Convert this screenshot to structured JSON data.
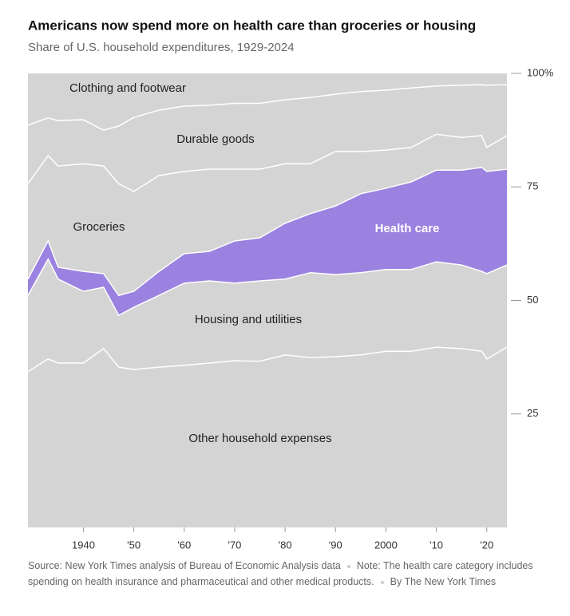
{
  "chart_data": {
    "type": "stacked_area",
    "title": "Americans now spend more on health care than groceries or housing",
    "subtitle": "Share of U.S. household expenditures, 1929-2024",
    "source": "Source: New York Times analysis of Bureau of Economic Analysis data",
    "note": "Note: The health care category includes spending on health insurance and pharmaceutical and other medical products.",
    "credit": "By The New York Times",
    "x": [
      1929,
      1933,
      1935,
      1940,
      1944,
      1947,
      1950,
      1955,
      1960,
      1965,
      1970,
      1975,
      1980,
      1985,
      1990,
      1995,
      2000,
      2005,
      2010,
      2015,
      2019,
      2020,
      2024
    ],
    "xlim": [
      1929,
      2024
    ],
    "xticks": [
      1940,
      {
        "value": 1950,
        "label": "'50"
      },
      {
        "value": 1960,
        "label": "'60"
      },
      {
        "value": 1970,
        "label": "'70"
      },
      {
        "value": 1980,
        "label": "'80"
      },
      {
        "value": 1990,
        "label": "'90"
      },
      2000,
      {
        "value": 2010,
        "label": "'10"
      },
      {
        "value": 2020,
        "label": "'20"
      }
    ],
    "ylim": [
      0,
      100
    ],
    "yticks": [
      25,
      50,
      75,
      {
        "value": 100,
        "label": "100%"
      }
    ],
    "series": [
      {
        "name": "Other household expenses",
        "color": "#d4d4d4",
        "values": [
          34.3,
          37.1,
          36.2,
          36.2,
          39.4,
          35.3,
          34.8,
          35.3,
          35.7,
          36.2,
          36.7,
          36.6,
          38.0,
          37.4,
          37.6,
          38.0,
          38.8,
          38.8,
          39.7,
          39.4,
          38.8,
          37.1,
          39.7
        ]
      },
      {
        "name": "Housing and utilities",
        "color": "#d4d4d4",
        "values": [
          16.8,
          22.0,
          18.5,
          15.8,
          13.5,
          11.4,
          13.7,
          15.8,
          18.1,
          18.1,
          17.1,
          17.7,
          16.7,
          18.7,
          18.1,
          18.1,
          18.0,
          18.0,
          18.8,
          18.4,
          17.6,
          18.8,
          18.1
        ]
      },
      {
        "name": "Health care",
        "color": "#9b82e0",
        "values": [
          3.6,
          4.0,
          2.6,
          4.4,
          3.0,
          4.4,
          3.5,
          5.3,
          6.5,
          6.5,
          9.3,
          9.5,
          12.3,
          13.0,
          15.1,
          17.4,
          17.9,
          19.3,
          20.2,
          20.9,
          22.9,
          22.5,
          21.1
        ]
      },
      {
        "name": "Groceries",
        "color": "#d4d4d4",
        "values": [
          21.0,
          18.8,
          22.3,
          23.7,
          23.7,
          24.6,
          22.0,
          21.1,
          18.1,
          18.1,
          15.8,
          15.1,
          13.1,
          11.0,
          12.0,
          9.3,
          8.4,
          7.6,
          7.9,
          7.2,
          7.0,
          5.3,
          7.4
        ]
      },
      {
        "name": "Durable goods",
        "color": "#d4d4d4",
        "values": [
          12.9,
          8.3,
          10.0,
          9.7,
          7.9,
          12.7,
          16.3,
          14.4,
          14.4,
          14.1,
          14.5,
          14.5,
          14.1,
          14.6,
          12.6,
          13.2,
          13.2,
          13.1,
          10.6,
          11.5,
          11.2,
          13.7,
          11.2
        ]
      },
      {
        "name": "Clothing and footwear",
        "color": "#d4d4d4",
        "values": [
          11.4,
          9.8,
          10.4,
          10.2,
          12.5,
          11.6,
          9.7,
          8.1,
          7.2,
          7.0,
          6.6,
          6.6,
          5.8,
          5.3,
          4.6,
          4.0,
          3.7,
          3.2,
          2.8,
          2.6,
          2.5,
          2.6,
          2.5
        ]
      }
    ]
  }
}
